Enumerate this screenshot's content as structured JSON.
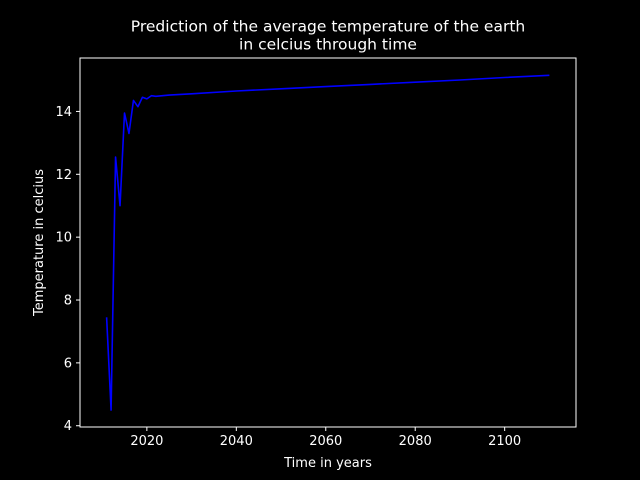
{
  "chart_data": {
    "type": "line",
    "title_lines": [
      "Prediction of the average temperature of the earth",
      "in celcius through time"
    ],
    "xlabel": "Time in years",
    "ylabel": "Temperature in celcius",
    "xlim": [
      2005.05,
      2115.95
    ],
    "ylim": [
      3.96,
      15.7
    ],
    "x_ticks": [
      2020,
      2040,
      2060,
      2080,
      2100
    ],
    "y_ticks": [
      4,
      6,
      8,
      10,
      12,
      14
    ],
    "grid": false,
    "line_color": "#0000ff",
    "background_color": "#000000",
    "foreground_color": "#ffffff",
    "series": [
      {
        "x": [
          2011,
          2012,
          2013,
          2014,
          2015,
          2016,
          2017,
          2018,
          2019,
          2020,
          2021,
          2022,
          2025,
          2030,
          2040,
          2050,
          2060,
          2070,
          2080,
          2090,
          2100,
          2110
        ],
        "y": [
          7.45,
          4.5,
          12.55,
          11.0,
          13.95,
          13.3,
          14.35,
          14.15,
          14.45,
          14.4,
          14.5,
          14.48,
          14.52,
          14.56,
          14.65,
          14.72,
          14.79,
          14.86,
          14.93,
          15.0,
          15.08,
          15.15
        ]
      }
    ]
  }
}
